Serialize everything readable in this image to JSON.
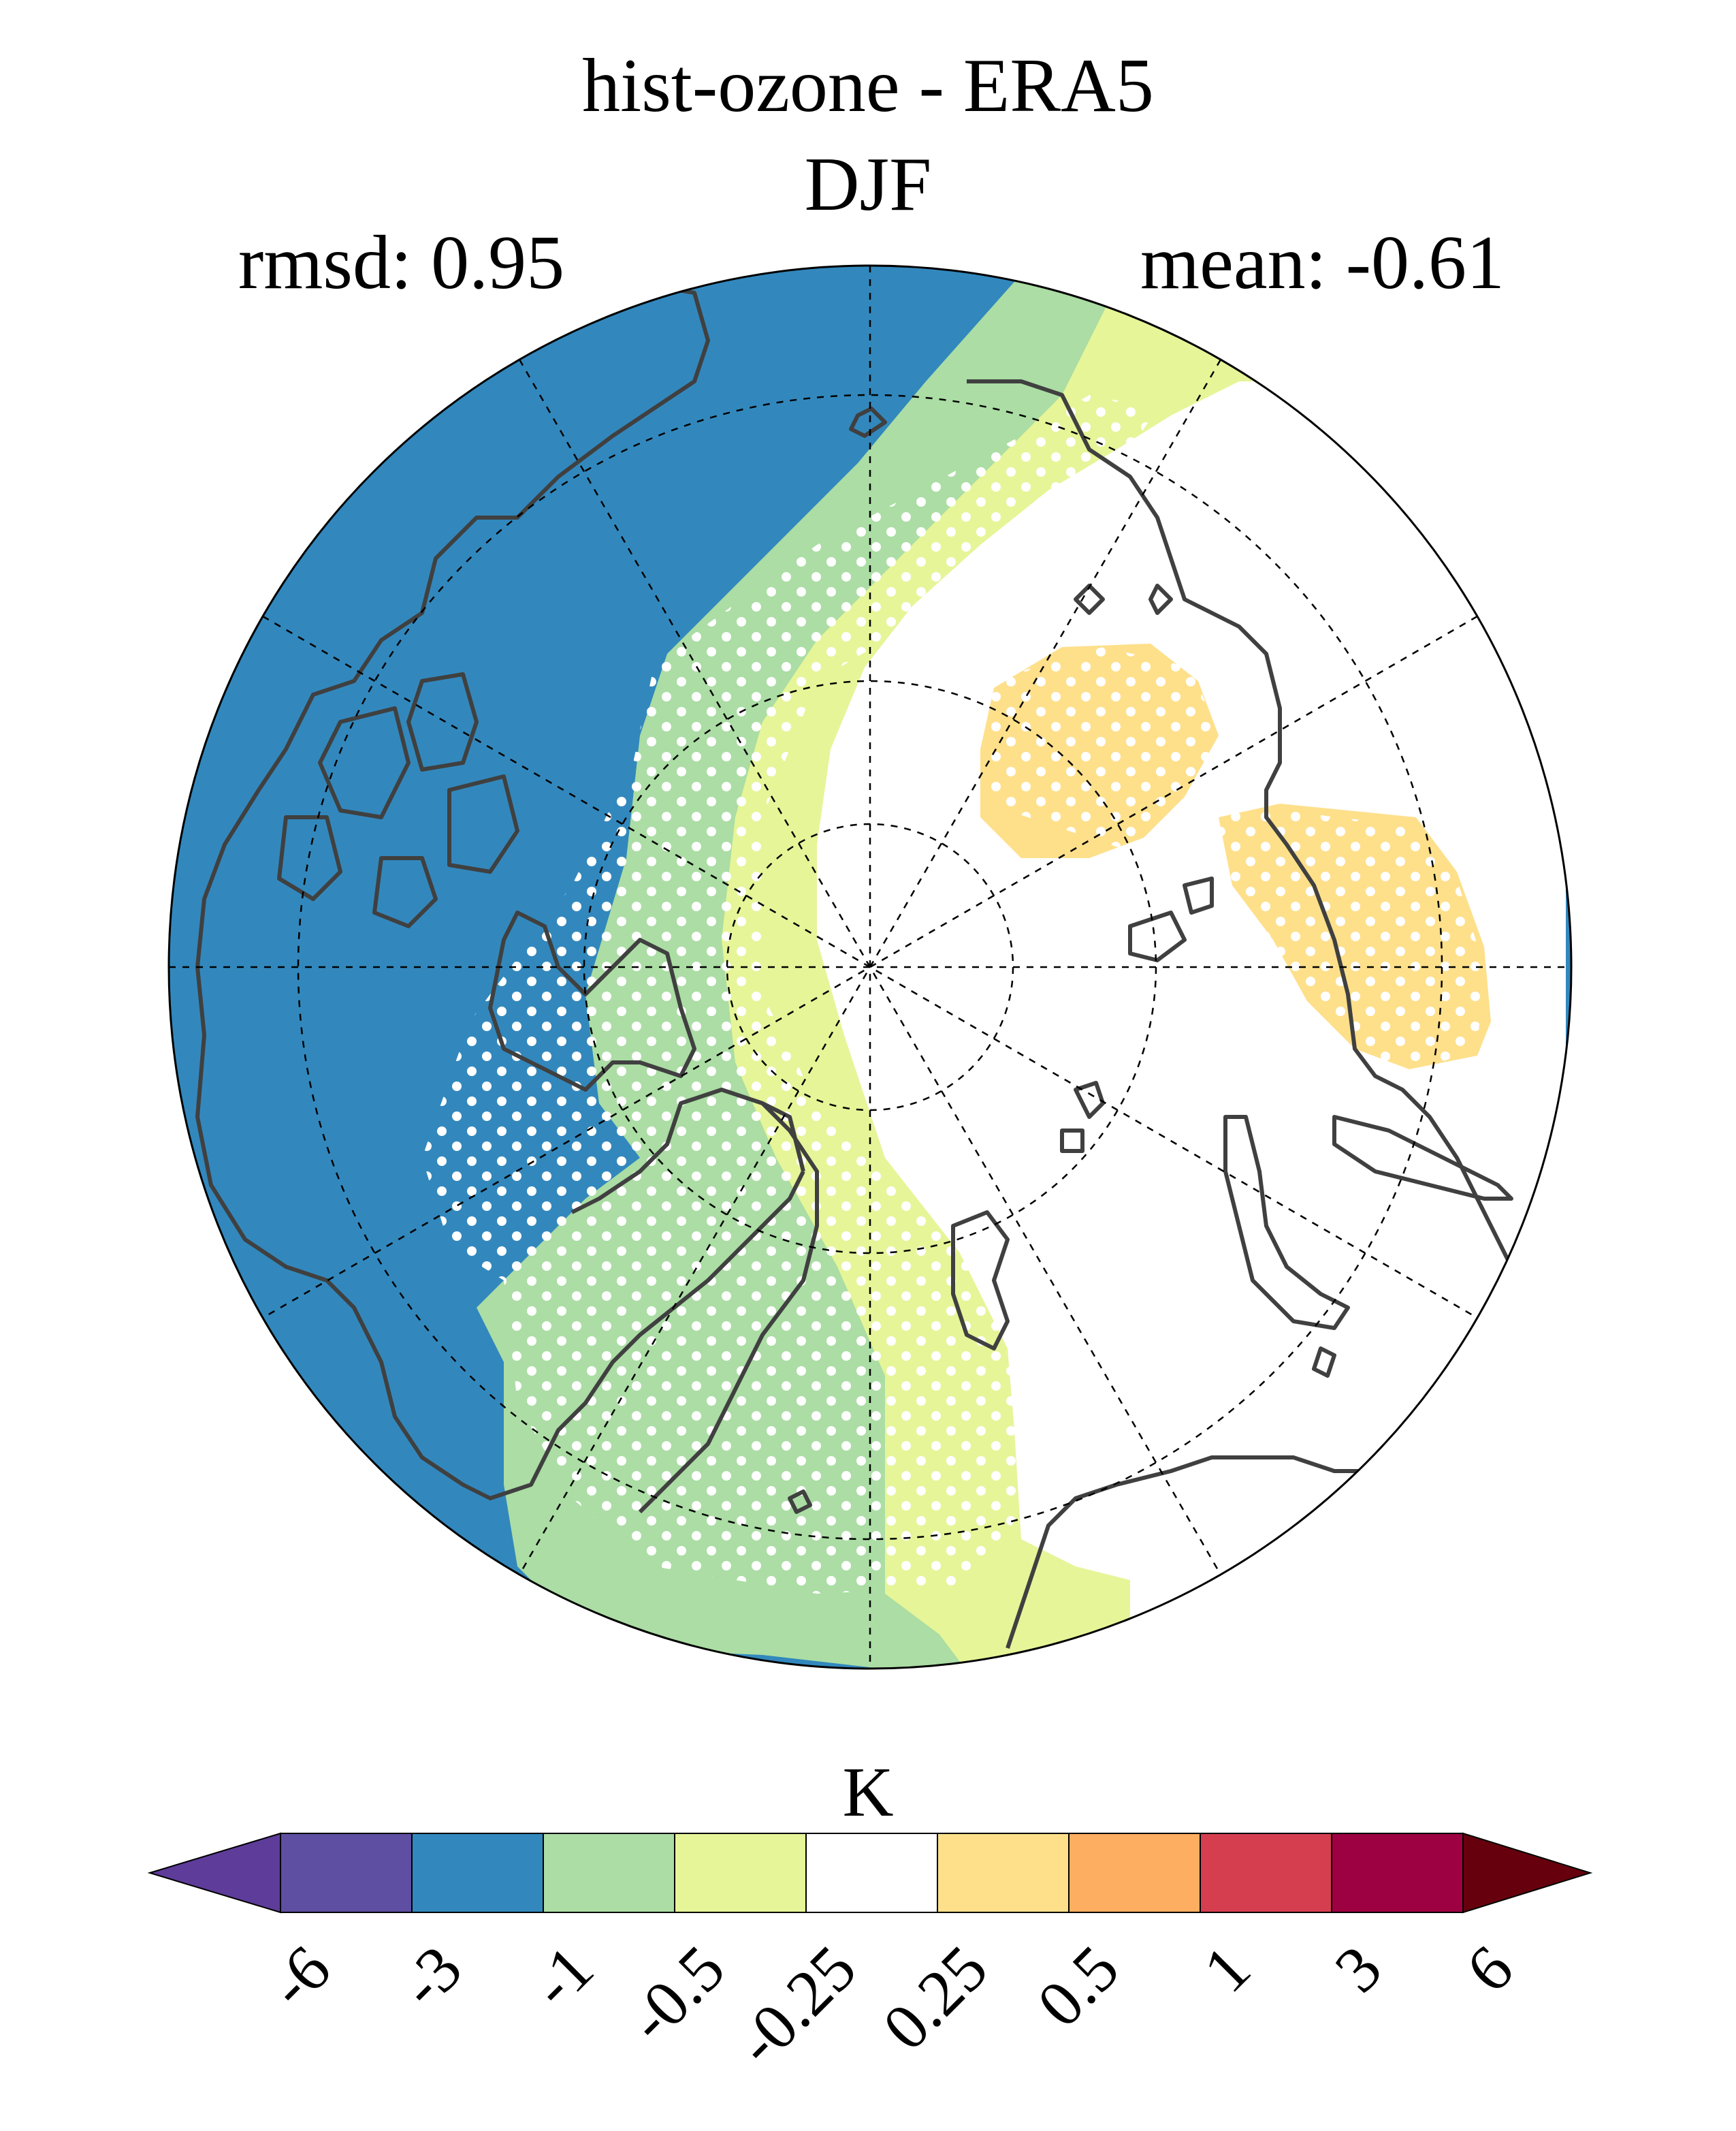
{
  "title": "hist-ozone - ERA5",
  "subtitle": "DJF",
  "stats": {
    "rmsd": "rmsd: 0.95",
    "mean": "mean: -0.61"
  },
  "colorbar": {
    "unit": "K",
    "ticks": [
      "-6",
      "-3",
      "-1",
      "-0.5",
      "-0.25",
      "0.25",
      "0.5",
      "1",
      "3",
      "6"
    ],
    "colors": [
      "#5e3c99",
      "#5e4fa2",
      "#3288bd",
      "#abdda4",
      "#e6f598",
      "#ffffff",
      "#fee08b",
      "#fdae61",
      "#d53e4f",
      "#9e0142",
      "#67000d"
    ]
  },
  "map_colors": {
    "blue": "#3288bd",
    "green": "#abdda4",
    "yellow": "#e6f598",
    "white": "#ffffff",
    "orange": "#fee08b",
    "coast": "#404040"
  }
}
